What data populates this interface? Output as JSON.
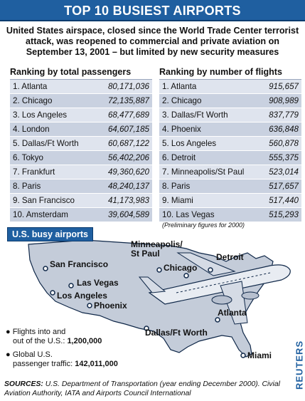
{
  "title": "TOP 10 BUSIEST AIRPORTS",
  "subtitle": "United States airspace, closed since the World Trade Center terrorist attack, was reopened to commercial and private aviation on September 13, 2001 – but limited by new security measures",
  "passengers": {
    "heading": "Ranking by total passengers",
    "rows": [
      {
        "label": "1. Atlanta",
        "value": "80,171,036"
      },
      {
        "label": "2. Chicago",
        "value": "72,135,887"
      },
      {
        "label": "3. Los Angeles",
        "value": "68,477,689"
      },
      {
        "label": "4. London",
        "value": "64,607,185"
      },
      {
        "label": "5. Dallas/Ft Worth",
        "value": "60,687,122"
      },
      {
        "label": "6. Tokyo",
        "value": "56,402,206"
      },
      {
        "label": "7. Frankfurt",
        "value": "49,360,620"
      },
      {
        "label": "8. Paris",
        "value": "48,240,137"
      },
      {
        "label": "9. San Francisco",
        "value": "41,173,983"
      },
      {
        "label": "10. Amsterdam",
        "value": "39,604,589"
      }
    ]
  },
  "flights": {
    "heading": "Ranking by number of flights",
    "rows": [
      {
        "label": "1. Atlanta",
        "value": "915,657"
      },
      {
        "label": "2. Chicago",
        "value": "908,989"
      },
      {
        "label": "3. Dallas/Ft Worth",
        "value": "837,779"
      },
      {
        "label": "4. Phoenix",
        "value": "636,848"
      },
      {
        "label": "5. Los Angeles",
        "value": "560,878"
      },
      {
        "label": "6. Detroit",
        "value": "555,375"
      },
      {
        "label": "7. Minneapolis/St Paul",
        "value": "523,014"
      },
      {
        "label": "8. Paris",
        "value": "517,657"
      },
      {
        "label": "9. Miami",
        "value": "517,440"
      },
      {
        "label": "10. Las Vegas",
        "value": "515,293"
      }
    ],
    "note": "(Preliminary figures for 2000)"
  },
  "map": {
    "badge": "U.S. busy airports",
    "cities": {
      "minneapolis_1": "Minneapolis/",
      "minneapolis_2": "St Paul",
      "detroit": "Detroit",
      "san_francisco": "San Francisco",
      "chicago": "Chicago",
      "las_vegas": "Las Vegas",
      "los_angeles": "Los Angeles",
      "phoenix": "Phoenix",
      "atlanta": "Atlanta",
      "dallas": "Dallas/Ft Worth",
      "miami": "Miami"
    },
    "stats": {
      "flights_line1": "Flights into and",
      "flights_line2": "out of the U.S.:",
      "flights_value": "1,200,000",
      "passengers_line1": "Global U.S.",
      "passengers_line2": "passenger traffic:",
      "passengers_value": "142,011,000"
    },
    "colors": {
      "land": "#c4ccd9",
      "outline": "#0f2748",
      "accent": "#1f5fa0"
    }
  },
  "credit": "REUTERS",
  "sources": {
    "label": "SOURCES:",
    "text": "U.S. Department of Transportation (year ending December 2000). Civial Aviation Authority, IATA and Airports Council International"
  }
}
